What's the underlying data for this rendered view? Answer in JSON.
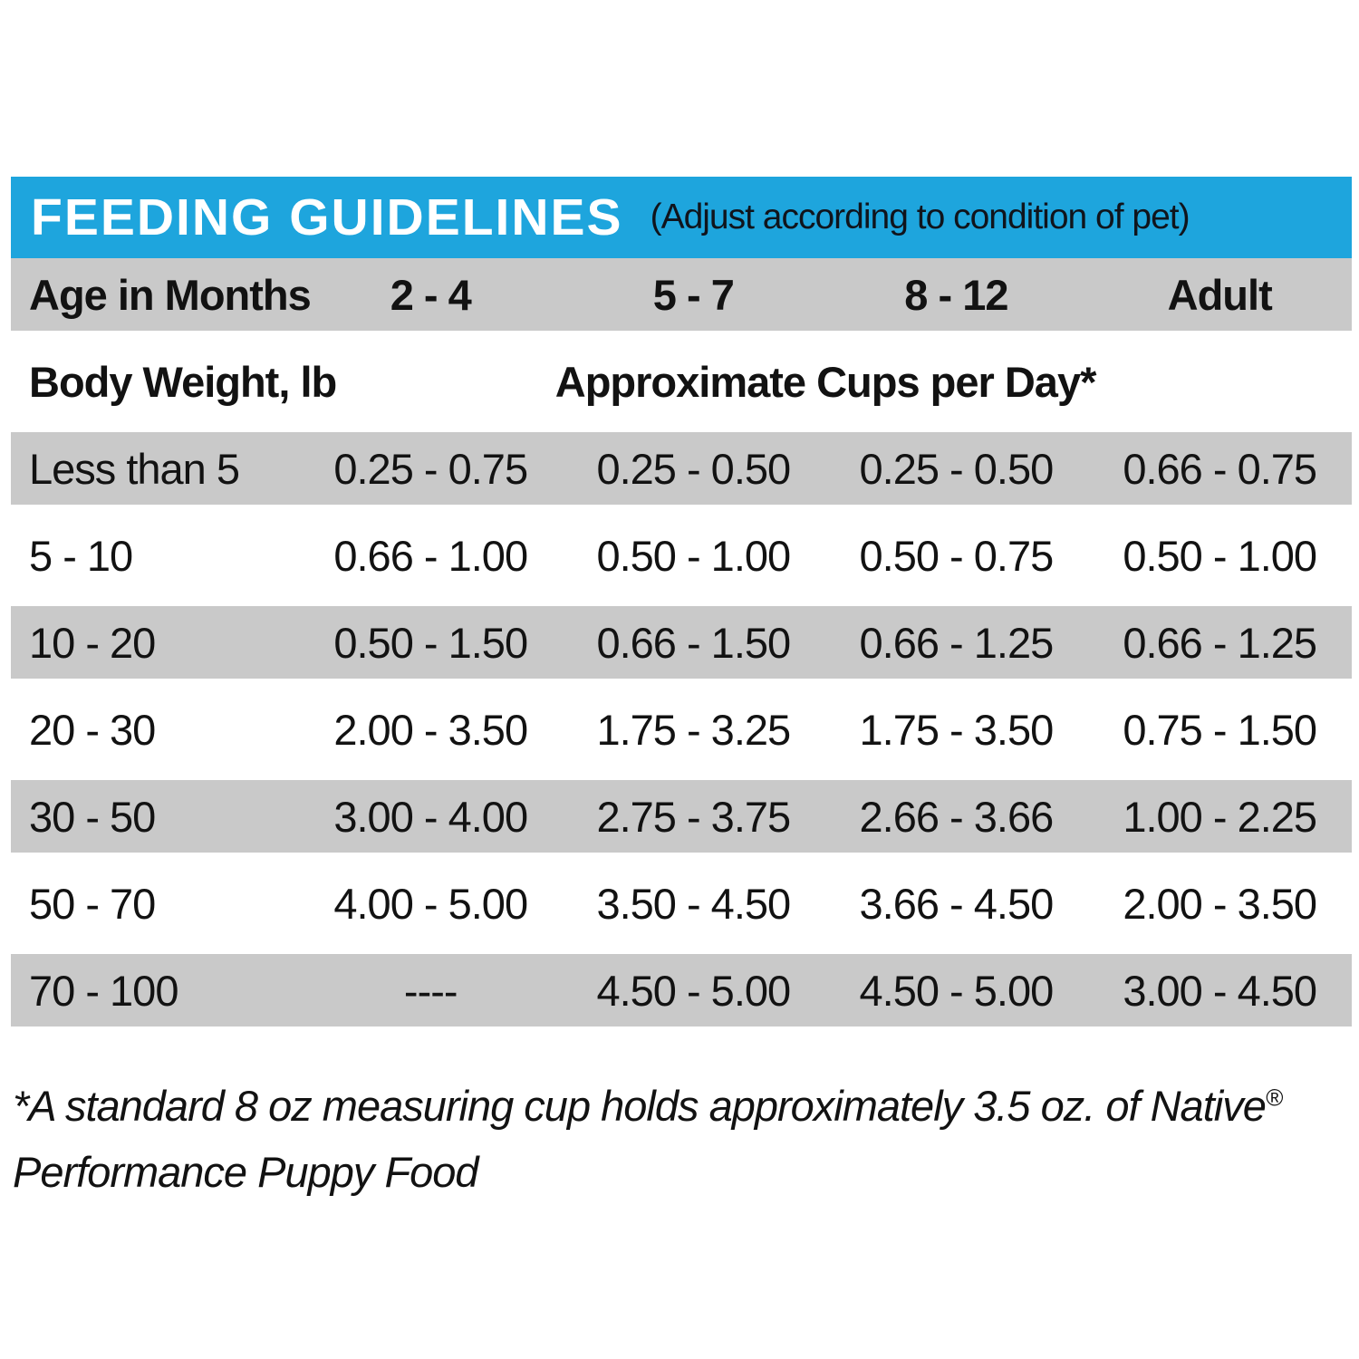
{
  "chart_data": {
    "type": "table",
    "title": "FEEDING GUIDELINES",
    "subtitle": "(Adjust according to condition of pet)",
    "age_group_label": "Age in Months",
    "age_columns": [
      "2 - 4",
      "5 - 7",
      "8 - 12",
      "Adult"
    ],
    "weight_label": "Body Weight, lb",
    "cups_label": "Approximate Cups per Day*",
    "rows": [
      {
        "weight": "Less than 5",
        "values": [
          "0.25 - 0.75",
          "0.25 - 0.50",
          "0.25 - 0.50",
          "0.66 - 0.75"
        ],
        "shaded": true
      },
      {
        "weight": "5 - 10",
        "values": [
          "0.66 - 1.00",
          "0.50 - 1.00",
          "0.50 - 0.75",
          "0.50 - 1.00"
        ],
        "shaded": false
      },
      {
        "weight": "10 - 20",
        "values": [
          "0.50 - 1.50",
          "0.66 - 1.50",
          "0.66 - 1.25",
          "0.66 - 1.25"
        ],
        "shaded": true
      },
      {
        "weight": "20 - 30",
        "values": [
          "2.00 - 3.50",
          "1.75 - 3.25",
          "1.75 - 3.50",
          "0.75 - 1.50"
        ],
        "shaded": false
      },
      {
        "weight": "30 - 50",
        "values": [
          "3.00 - 4.00",
          "2.75 - 3.75",
          "2.66 - 3.66",
          "1.00 - 2.25"
        ],
        "shaded": true
      },
      {
        "weight": "50 - 70",
        "values": [
          "4.00 - 5.00",
          "3.50 - 4.50",
          "3.66 - 4.50",
          "2.00 - 3.50"
        ],
        "shaded": false
      },
      {
        "weight": "70 - 100",
        "values": [
          "----",
          "4.50 - 5.00",
          "4.50 - 5.00",
          "3.00 - 4.50"
        ],
        "shaded": true
      }
    ],
    "footnote_line1": "*A standard 8 oz measuring cup holds approximately 3.5 oz. of Native",
    "footnote_registered_mark": "®",
    "footnote_line2": "Performance Puppy Food"
  },
  "colors": {
    "header_blue": "#1ea5dd",
    "stripe_gray": "#c9c9c9",
    "text_black": "#121212",
    "title_white": "#ffffff"
  }
}
